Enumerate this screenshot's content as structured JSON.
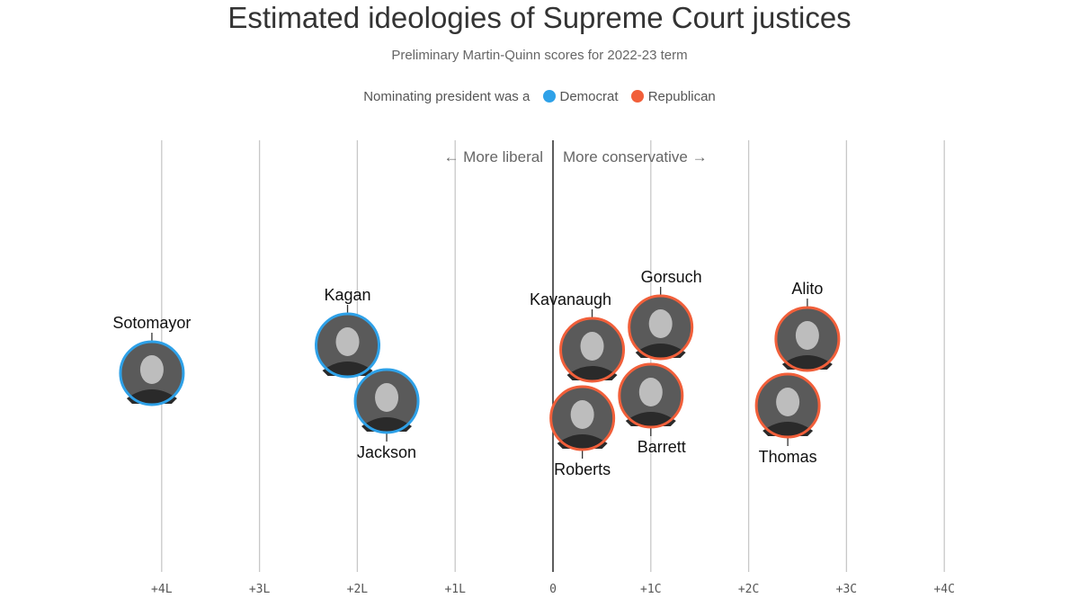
{
  "title": "Estimated ideologies of Supreme Court justices",
  "subtitle": "Preliminary Martin-Quinn scores for 2022-23 term",
  "legend": {
    "prefix": "Nominating president was a",
    "items": [
      {
        "label": "Democrat",
        "color": "#2ea1e8"
      },
      {
        "label": "Republican",
        "color": "#f15f3a"
      }
    ]
  },
  "direction_labels": {
    "left": "← More liberal",
    "right": "More conservative →"
  },
  "chart_data": {
    "type": "scatter",
    "x_axis": {
      "range": [
        -4,
        4
      ],
      "ticks": [
        -4,
        -3,
        -2,
        -1,
        0,
        1,
        2,
        3,
        4
      ],
      "tick_labels": [
        "+4L",
        "+3L",
        "+2L",
        "+1L",
        "0",
        "+1C",
        "+2C",
        "+3C",
        "+4C"
      ]
    },
    "grid": true,
    "legend_placement": "top-center",
    "justices": [
      {
        "name": "Sotomayor",
        "score": -4.1,
        "party": "Democrat"
      },
      {
        "name": "Kagan",
        "score": -2.1,
        "party": "Democrat"
      },
      {
        "name": "Jackson",
        "score": -1.7,
        "party": "Democrat"
      },
      {
        "name": "Kavanaugh",
        "score": 0.4,
        "party": "Republican"
      },
      {
        "name": "Roberts",
        "score": 0.3,
        "party": "Republican"
      },
      {
        "name": "Gorsuch",
        "score": 1.1,
        "party": "Republican"
      },
      {
        "name": "Barrett",
        "score": 1.0,
        "party": "Republican"
      },
      {
        "name": "Alito",
        "score": 2.6,
        "party": "Republican"
      },
      {
        "name": "Thomas",
        "score": 2.4,
        "party": "Republican"
      }
    ]
  }
}
